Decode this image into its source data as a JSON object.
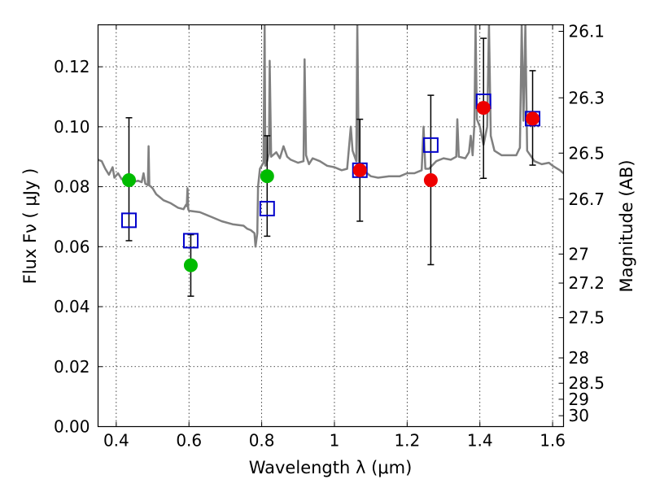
{
  "chart_data": {
    "type": "scatter",
    "xlabel": "Wavelength  λ (μm)",
    "ylabel": "Flux  Fν  ( μJy )",
    "ylabel_right": "Magnitude (AB)",
    "xlim": [
      0.35,
      1.63
    ],
    "ylim": [
      0.0,
      0.134
    ],
    "grid": true,
    "x_ticks": [
      {
        "value": 0.4,
        "label": "0.4"
      },
      {
        "value": 0.6,
        "label": "0.6"
      },
      {
        "value": 0.8,
        "label": "0.8"
      },
      {
        "value": 1.0,
        "label": "1"
      },
      {
        "value": 1.2,
        "label": "1.2"
      },
      {
        "value": 1.4,
        "label": "1.4"
      },
      {
        "value": 1.6,
        "label": "1.6"
      }
    ],
    "y_ticks": [
      {
        "value": 0.0,
        "label": "0.00"
      },
      {
        "value": 0.02,
        "label": "0.02"
      },
      {
        "value": 0.04,
        "label": "0.04"
      },
      {
        "value": 0.06,
        "label": "0.06"
      },
      {
        "value": 0.08,
        "label": "0.08"
      },
      {
        "value": 0.1,
        "label": "0.10"
      },
      {
        "value": 0.12,
        "label": "0.12"
      }
    ],
    "y2_ticks": [
      {
        "mag": 26.1,
        "label": "26.1"
      },
      {
        "mag": 26.3,
        "label": "26.3"
      },
      {
        "mag": 26.5,
        "label": "26.5"
      },
      {
        "mag": 26.7,
        "label": "26.7"
      },
      {
        "mag": 27.0,
        "label": "27"
      },
      {
        "mag": 27.2,
        "label": "27.2"
      },
      {
        "mag": 27.5,
        "label": "27.5"
      },
      {
        "mag": 28.0,
        "label": "28"
      },
      {
        "mag": 28.5,
        "label": "28.5"
      },
      {
        "mag": 29.0,
        "label": "29"
      },
      {
        "mag": 30.0,
        "label": "30"
      }
    ],
    "series": [
      {
        "kind": "line",
        "color": "#808080",
        "points": [
          [
            0.35,
            0.089
          ],
          [
            0.36,
            0.0885
          ],
          [
            0.37,
            0.086
          ],
          [
            0.38,
            0.084
          ],
          [
            0.39,
            0.0865
          ],
          [
            0.395,
            0.083
          ],
          [
            0.405,
            0.0845
          ],
          [
            0.415,
            0.0825
          ],
          [
            0.43,
            0.0835
          ],
          [
            0.445,
            0.0815
          ],
          [
            0.46,
            0.082
          ],
          [
            0.47,
            0.0815
          ],
          [
            0.475,
            0.0845
          ],
          [
            0.48,
            0.081
          ],
          [
            0.487,
            0.0805
          ],
          [
            0.489,
            0.0935
          ],
          [
            0.491,
            0.0805
          ],
          [
            0.5,
            0.0795
          ],
          [
            0.51,
            0.0775
          ],
          [
            0.52,
            0.0765
          ],
          [
            0.53,
            0.0755
          ],
          [
            0.55,
            0.0745
          ],
          [
            0.57,
            0.073
          ],
          [
            0.585,
            0.0725
          ],
          [
            0.592,
            0.074
          ],
          [
            0.594,
            0.0735
          ],
          [
            0.596,
            0.0795
          ],
          [
            0.598,
            0.0725
          ],
          [
            0.6,
            0.072
          ],
          [
            0.63,
            0.0715
          ],
          [
            0.66,
            0.07
          ],
          [
            0.69,
            0.0685
          ],
          [
            0.72,
            0.0675
          ],
          [
            0.75,
            0.067
          ],
          [
            0.76,
            0.066
          ],
          [
            0.77,
            0.0655
          ],
          [
            0.78,
            0.0645
          ],
          [
            0.783,
            0.06
          ],
          [
            0.788,
            0.0645
          ],
          [
            0.79,
            0.08
          ],
          [
            0.795,
            0.086
          ],
          [
            0.8,
            0.087
          ],
          [
            0.805,
            0.088
          ],
          [
            0.808,
            0.134
          ],
          [
            0.81,
            0.087
          ],
          [
            0.815,
            0.0885
          ],
          [
            0.82,
            0.091
          ],
          [
            0.822,
            0.122
          ],
          [
            0.826,
            0.09
          ],
          [
            0.84,
            0.0915
          ],
          [
            0.85,
            0.0895
          ],
          [
            0.86,
            0.0935
          ],
          [
            0.87,
            0.09
          ],
          [
            0.88,
            0.089
          ],
          [
            0.9,
            0.088
          ],
          [
            0.915,
            0.0885
          ],
          [
            0.918,
            0.1225
          ],
          [
            0.922,
            0.0905
          ],
          [
            0.93,
            0.0875
          ],
          [
            0.94,
            0.0895
          ],
          [
            0.96,
            0.0885
          ],
          [
            0.98,
            0.087
          ],
          [
            1.0,
            0.0865
          ],
          [
            1.02,
            0.0855
          ],
          [
            1.035,
            0.086
          ],
          [
            1.045,
            0.1
          ],
          [
            1.05,
            0.092
          ],
          [
            1.06,
            0.0885
          ],
          [
            1.063,
            0.134
          ],
          [
            1.067,
            0.0885
          ],
          [
            1.08,
            0.0855
          ],
          [
            1.1,
            0.0835
          ],
          [
            1.12,
            0.083
          ],
          [
            1.15,
            0.0835
          ],
          [
            1.18,
            0.0835
          ],
          [
            1.2,
            0.0845
          ],
          [
            1.22,
            0.0845
          ],
          [
            1.24,
            0.0855
          ],
          [
            1.245,
            0.1
          ],
          [
            1.25,
            0.086
          ],
          [
            1.26,
            0.086
          ],
          [
            1.28,
            0.0885
          ],
          [
            1.3,
            0.0895
          ],
          [
            1.32,
            0.089
          ],
          [
            1.335,
            0.09
          ],
          [
            1.338,
            0.1025
          ],
          [
            1.342,
            0.09
          ],
          [
            1.36,
            0.0895
          ],
          [
            1.37,
            0.0915
          ],
          [
            1.375,
            0.097
          ],
          [
            1.38,
            0.0905
          ],
          [
            1.385,
            0.101
          ],
          [
            1.388,
            0.134
          ],
          [
            1.392,
            0.1025
          ],
          [
            1.4,
            0.1
          ],
          [
            1.41,
            0.094
          ],
          [
            1.42,
            0.1
          ],
          [
            1.425,
            0.134
          ],
          [
            1.43,
            0.097
          ],
          [
            1.44,
            0.092
          ],
          [
            1.46,
            0.0905
          ],
          [
            1.48,
            0.0905
          ],
          [
            1.5,
            0.0905
          ],
          [
            1.51,
            0.093
          ],
          [
            1.515,
            0.134
          ],
          [
            1.52,
            0.102
          ],
          [
            1.525,
            0.134
          ],
          [
            1.53,
            0.092
          ],
          [
            1.55,
            0.0885
          ],
          [
            1.57,
            0.0875
          ],
          [
            1.59,
            0.088
          ],
          [
            1.6,
            0.087
          ],
          [
            1.62,
            0.0855
          ],
          [
            1.63,
            0.0845
          ]
        ]
      },
      {
        "kind": "squares",
        "color": "#0000cc",
        "points": [
          [
            0.435,
            0.0688
          ],
          [
            0.605,
            0.062
          ],
          [
            0.815,
            0.0727
          ],
          [
            1.07,
            0.0855
          ],
          [
            1.265,
            0.0939
          ],
          [
            1.41,
            0.1085
          ],
          [
            1.545,
            0.1027
          ]
        ]
      },
      {
        "kind": "circles",
        "color": "#00bb00",
        "points": [
          [
            0.435,
            0.0822
          ],
          [
            0.605,
            0.0538
          ],
          [
            0.815,
            0.0835
          ]
        ]
      },
      {
        "kind": "circles",
        "color": "#ee0000",
        "points": [
          [
            1.07,
            0.0855
          ],
          [
            1.265,
            0.0822
          ],
          [
            1.41,
            0.1063
          ],
          [
            1.545,
            0.1027
          ]
        ]
      },
      {
        "kind": "errorbars",
        "color": "#000000",
        "bars": [
          [
            0.435,
            0.062,
            0.103
          ],
          [
            0.605,
            0.0435,
            0.064
          ],
          [
            0.815,
            0.0635,
            0.097
          ],
          [
            1.07,
            0.0685,
            0.1025
          ],
          [
            1.265,
            0.054,
            0.1105
          ],
          [
            1.41,
            0.0828,
            0.1295
          ],
          [
            1.545,
            0.0872,
            0.1187
          ]
        ]
      }
    ]
  }
}
